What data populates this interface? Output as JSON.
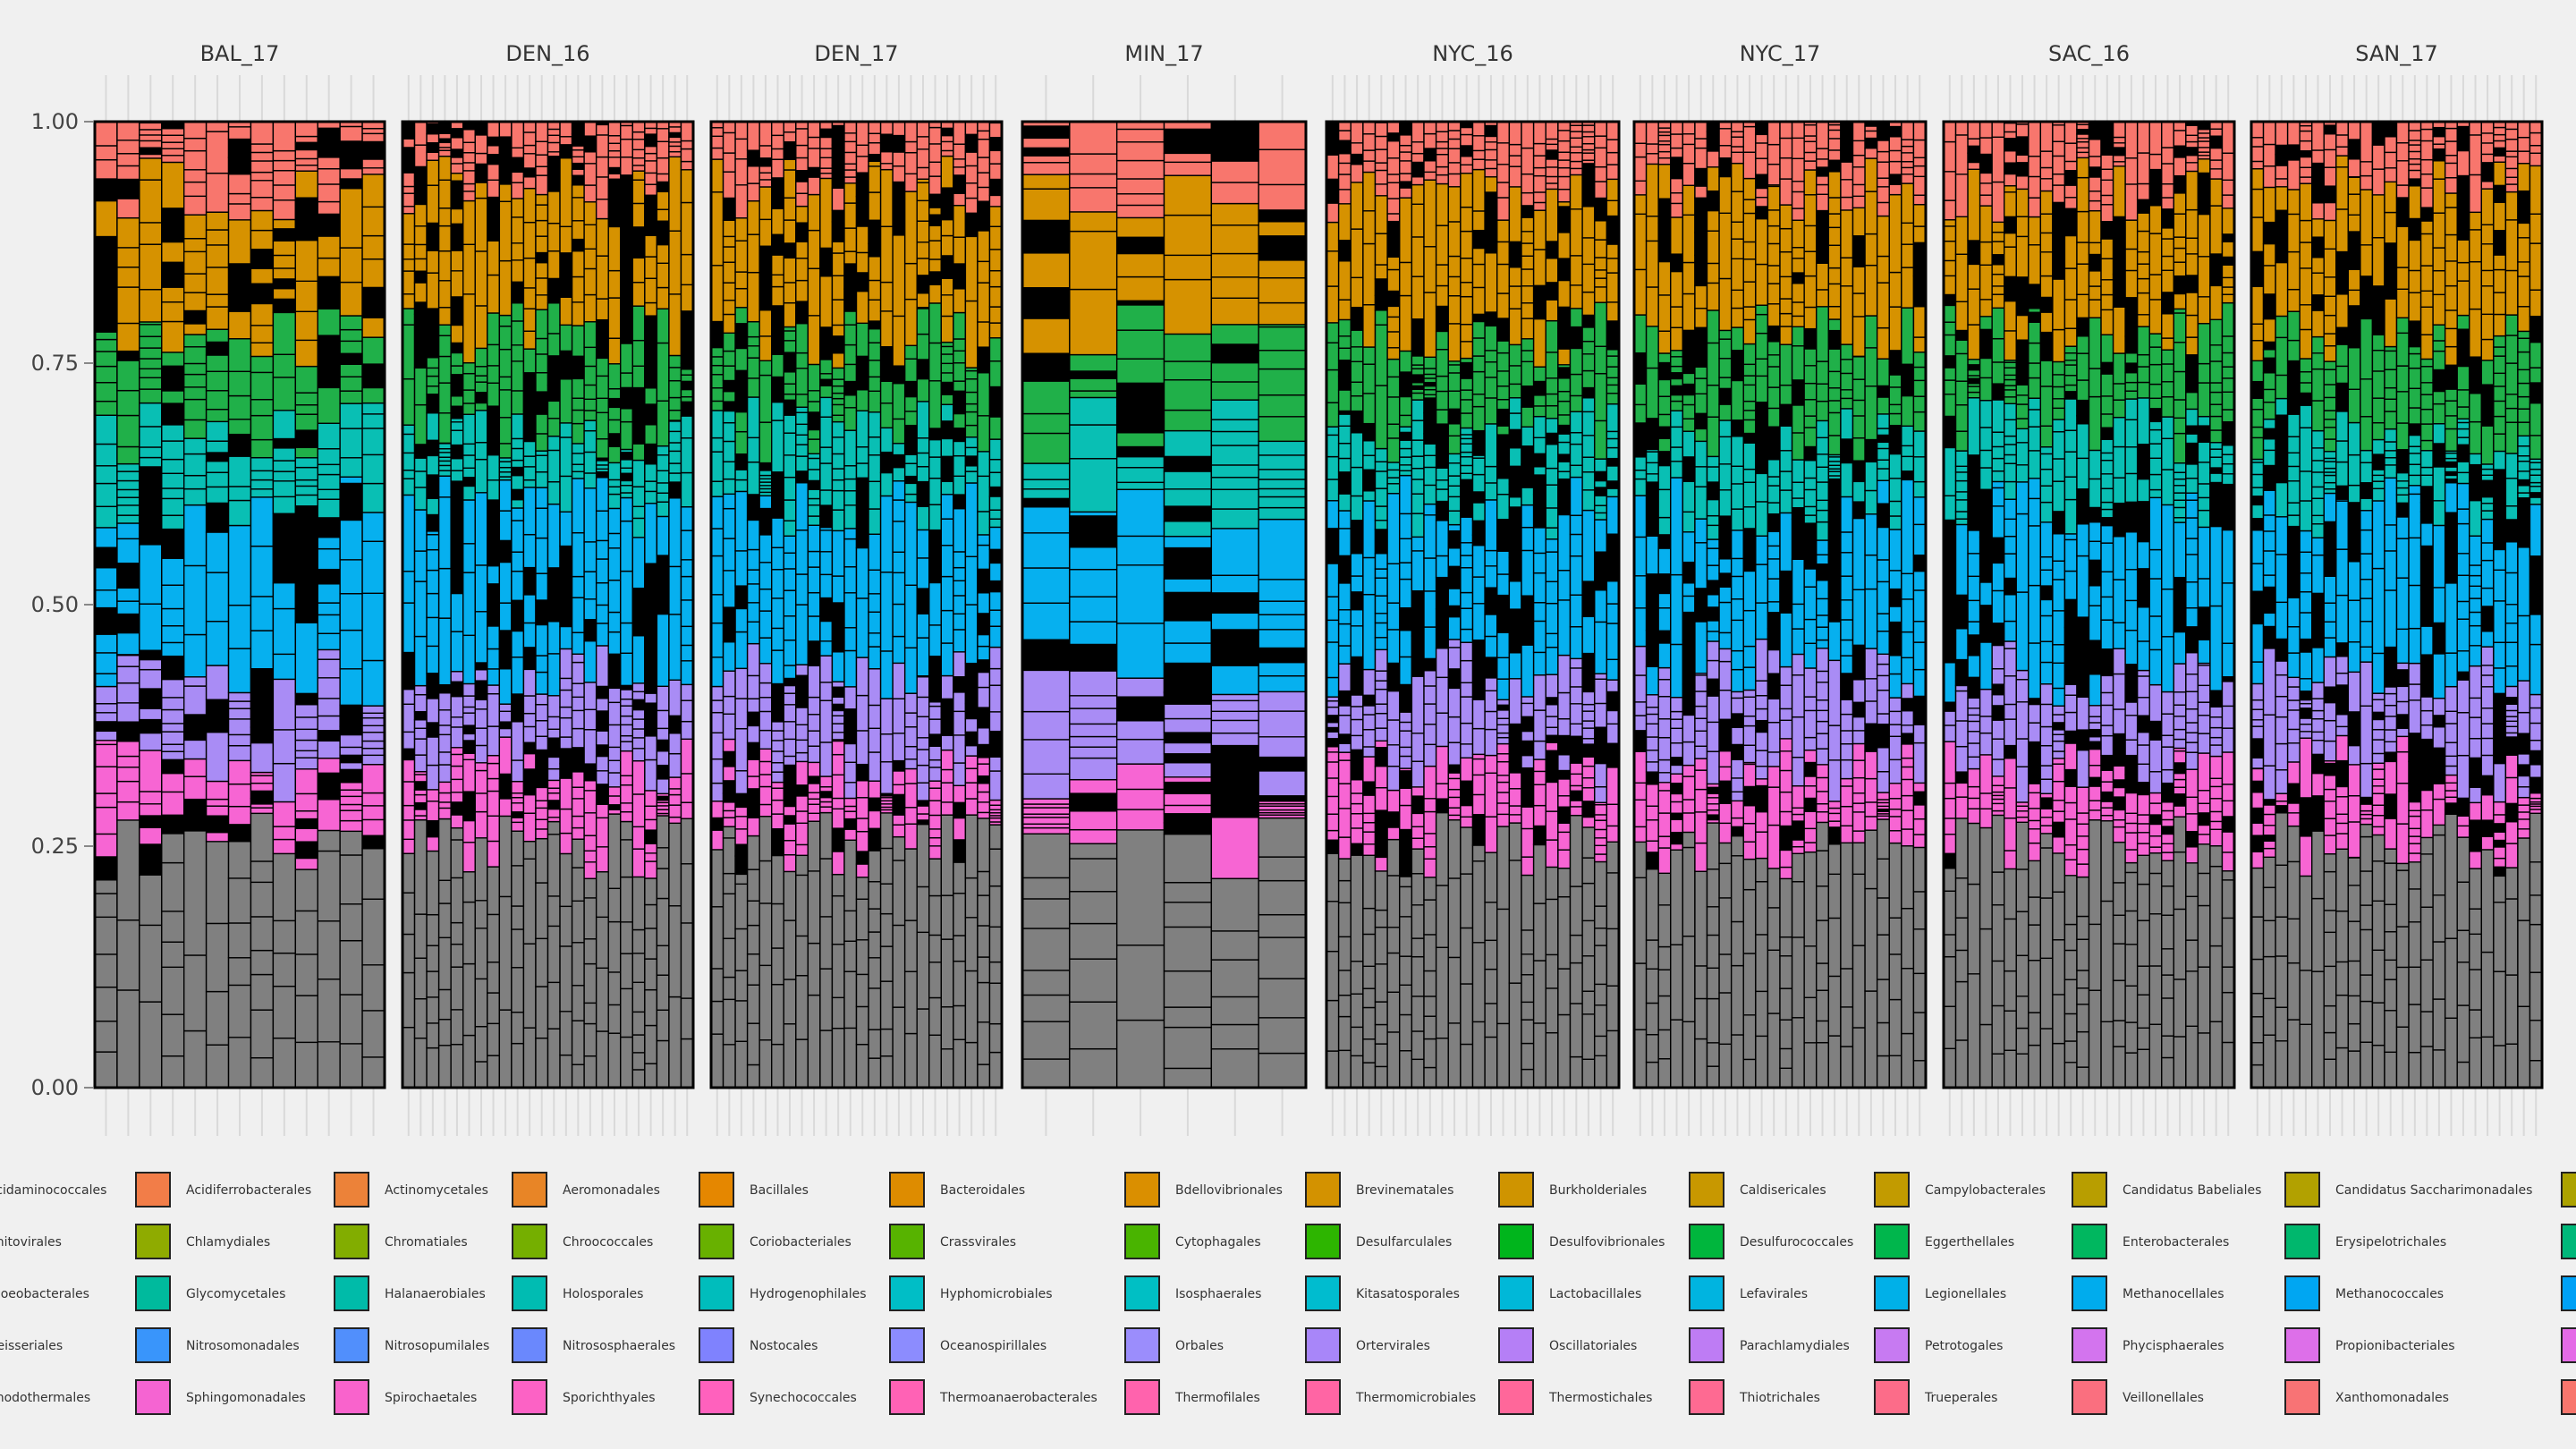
{
  "chart_data": {
    "type": "bar",
    "stacked": true,
    "facets": [
      {
        "label": "BAL_17",
        "n_samples": 13
      },
      {
        "label": "DEN_16",
        "n_samples": 24
      },
      {
        "label": "DEN_17",
        "n_samples": 24
      },
      {
        "label": "MIN_17",
        "n_samples": 6
      },
      {
        "label": "NYC_16",
        "n_samples": 24
      },
      {
        "label": "NYC_17",
        "n_samples": 24
      },
      {
        "label": "SAC_16",
        "n_samples": 24
      },
      {
        "label": "SAN_17",
        "n_samples": 24
      }
    ],
    "ylim": [
      0,
      1
    ],
    "yticks": [
      {
        "value": 0.0,
        "label": "0.00"
      },
      {
        "value": 0.25,
        "label": "0.25"
      },
      {
        "value": 0.5,
        "label": "0.50"
      },
      {
        "value": 0.75,
        "label": "0.75"
      },
      {
        "value": 1.0,
        "label": "1.00"
      }
    ],
    "group_bands": [
      {
        "group": "other (grey)",
        "color": "#808080",
        "approx_range": [
          0.0,
          0.25
        ]
      },
      {
        "group": "pink",
        "color": "#f765d3",
        "approx_range": [
          0.25,
          0.33
        ]
      },
      {
        "group": "purple",
        "color": "#a98cf5",
        "approx_range": [
          0.33,
          0.43
        ]
      },
      {
        "group": "blue",
        "color": "#06b0ef",
        "approx_range": [
          0.43,
          0.6
        ]
      },
      {
        "group": "teal",
        "color": "#09bfb4",
        "approx_range": [
          0.6,
          0.68
        ]
      },
      {
        "group": "green",
        "color": "#20b049",
        "approx_range": [
          0.68,
          0.78
        ]
      },
      {
        "group": "gold",
        "color": "#d69200",
        "approx_range": [
          0.78,
          0.93
        ]
      },
      {
        "group": "salmon",
        "color": "#f8766d",
        "approx_range": [
          0.93,
          1.0
        ]
      }
    ],
    "legend_position": "bottom",
    "legend_rows": [
      [
        {
          "label": "Acidaminococcales",
          "color": "#f8766d"
        },
        {
          "label": "Acidiferrobacterales",
          "color": "#f27d48"
        },
        {
          "label": "Actinomycetales",
          "color": "#ec8239"
        },
        {
          "label": "Aeromonadales",
          "color": "#e88526"
        },
        {
          "label": "Bacillales",
          "color": "#e58700"
        },
        {
          "label": "Bacteroidales",
          "color": "#de8c00"
        },
        {
          "label": "Bdellovibrionales",
          "color": "#da8f00"
        },
        {
          "label": "Brevinematales",
          "color": "#d39200"
        },
        {
          "label": "Burkholderiales",
          "color": "#cf9400"
        },
        {
          "label": "Caldisericales",
          "color": "#c89800"
        },
        {
          "label": "Campylobacterales",
          "color": "#c29b00"
        },
        {
          "label": "Candidatus Babeliales",
          "color": "#b89e00"
        },
        {
          "label": "Candidatus Saccharimonadales",
          "color": "#b2a100"
        },
        {
          "label": "",
          "color": "#aca200"
        }
      ],
      [
        {
          "label": "Chitovirales",
          "color": "#99a800"
        },
        {
          "label": "Chlamydiales",
          "color": "#8fab00"
        },
        {
          "label": "Chromatiales",
          "color": "#82ad00"
        },
        {
          "label": "Chroococcales",
          "color": "#75af00"
        },
        {
          "label": "Coriobacteriales",
          "color": "#68b100"
        },
        {
          "label": "Crassvirales",
          "color": "#57b300"
        },
        {
          "label": "Cytophagales",
          "color": "#49b400"
        },
        {
          "label": "Desulfarculales",
          "color": "#2db500"
        },
        {
          "label": "Desulfovibrionales",
          "color": "#00b51c"
        },
        {
          "label": "Desulfurococcales",
          "color": "#00b63d"
        },
        {
          "label": "Eggerthellales",
          "color": "#00b64c"
        },
        {
          "label": "Enterobacterales",
          "color": "#00b75f"
        },
        {
          "label": "Erysipelotrichales",
          "color": "#00b76d"
        },
        {
          "label": "",
          "color": "#00b87a"
        }
      ],
      [
        {
          "label": "Gloeobacterales",
          "color": "#00b98f"
        },
        {
          "label": "Glycomycetales",
          "color": "#00ba9d"
        },
        {
          "label": "Halanaerobiales",
          "color": "#00bba9"
        },
        {
          "label": "Holosporales",
          "color": "#00bcb2"
        },
        {
          "label": "Hydrogenophilales",
          "color": "#00bdbc"
        },
        {
          "label": "Hyphomicrobiales",
          "color": "#00bec6"
        },
        {
          "label": "Isosphaerales",
          "color": "#00bfc4"
        },
        {
          "label": "Kitasatosporales",
          "color": "#00bccf"
        },
        {
          "label": "Lactobacillales",
          "color": "#00b8d8"
        },
        {
          "label": "Lefavirales",
          "color": "#00b4e0"
        },
        {
          "label": "Legionellales",
          "color": "#00b0e8"
        },
        {
          "label": "Methanocellales",
          "color": "#00aced"
        },
        {
          "label": "Methanococcales",
          "color": "#00a6f2"
        },
        {
          "label": "",
          "color": "#00a1f6"
        }
      ],
      [
        {
          "label": "Neisseriales",
          "color": "#2e9af8"
        },
        {
          "label": "Nitrosomonadales",
          "color": "#3995fb"
        },
        {
          "label": "Nitrosopumilales",
          "color": "#518ffc"
        },
        {
          "label": "Nitrososphaerales",
          "color": "#6a88fd"
        },
        {
          "label": "Nostocales",
          "color": "#7f82fe"
        },
        {
          "label": "Oceanospirillales",
          "color": "#8c8cfe"
        },
        {
          "label": "Orbales",
          "color": "#9b8dfc"
        },
        {
          "label": "Ortervirales",
          "color": "#a886f9"
        },
        {
          "label": "Oscillatoriales",
          "color": "#b57ff6"
        },
        {
          "label": "Parachlamydiales",
          "color": "#be7cf4"
        },
        {
          "label": "Petrotogales",
          "color": "#c77af2"
        },
        {
          "label": "Phycisphaerales",
          "color": "#d374ee"
        },
        {
          "label": "Propionibacteriales",
          "color": "#dd6fe9"
        },
        {
          "label": "",
          "color": "#e46be6"
        }
      ],
      [
        {
          "label": "Rhodothermales",
          "color": "#f066d8"
        },
        {
          "label": "Sphingomonadales",
          "color": "#f564d2"
        },
        {
          "label": "Spirochaetales",
          "color": "#f963cc"
        },
        {
          "label": "Sporichthyales",
          "color": "#fc62c5"
        },
        {
          "label": "Synechococcales",
          "color": "#ff61bd"
        },
        {
          "label": "Thermoanaerobacterales",
          "color": "#ff62b5"
        },
        {
          "label": "Thermofilales",
          "color": "#ff63ad"
        },
        {
          "label": "Thermomicrobiales",
          "color": "#ff65a4"
        },
        {
          "label": "Thermostichales",
          "color": "#ff679a"
        },
        {
          "label": "Thiotrichales",
          "color": "#fe6a92"
        },
        {
          "label": "Trueperales",
          "color": "#fc6c89"
        },
        {
          "label": "Veillonellales",
          "color": "#fa6f7f"
        },
        {
          "label": "Xanthomonadales",
          "color": "#f87375"
        },
        {
          "label": "",
          "color": "#f8766d"
        }
      ]
    ]
  }
}
